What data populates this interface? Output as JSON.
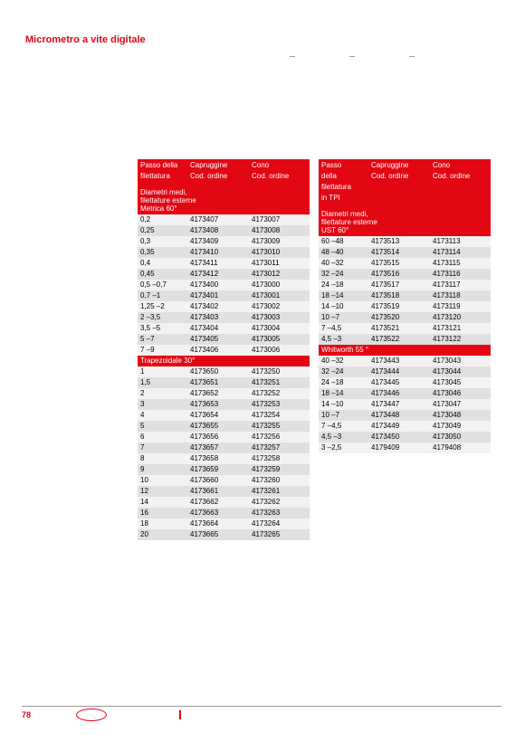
{
  "title": "Micrometro a vite digitale",
  "topLabels": [
    "—",
    "—",
    "—"
  ],
  "left": {
    "head": {
      "c1a": "Passo della",
      "c1b": "filettatura",
      "c2": "Capruggine",
      "c3": "Cono",
      "c2b": "Cod. ordine",
      "c3b": "Cod. ordine"
    },
    "section1": "Diametri medi,\nfilettature esterne\nMetrica 60°",
    "rows1": [
      [
        "0,2",
        "4173407",
        "4173007"
      ],
      [
        "0,25",
        "4173408",
        "4173008"
      ],
      [
        "0,3",
        "4173409",
        "4173009"
      ],
      [
        "0,35",
        "4173410",
        "4173010"
      ],
      [
        "0,4",
        "4173411",
        "4173011"
      ],
      [
        "0,45",
        "4173412",
        "4173012"
      ],
      [
        "0,5 –0,7",
        "4173400",
        "4173000"
      ],
      [
        "0,7 –1",
        "4173401",
        "4173001"
      ],
      [
        "1,25 –2",
        "4173402",
        "4173002"
      ],
      [
        "2 –3,5",
        "4173403",
        "4173003"
      ],
      [
        "3,5 –5",
        "4173404",
        "4173004"
      ],
      [
        "5 –7",
        "4173405",
        "4173005"
      ],
      [
        "7 –9",
        "4173406",
        "4173006"
      ]
    ],
    "section2": "Trapezoidale 30°",
    "rows2": [
      [
        "1",
        "4173650",
        "4173250"
      ],
      [
        "1,5",
        "4173651",
        "4173251"
      ],
      [
        "2",
        "4173652",
        "4173252"
      ],
      [
        "3",
        "4173653",
        "4173253"
      ],
      [
        "4",
        "4173654",
        "4173254"
      ],
      [
        "5",
        "4173655",
        "4173255"
      ],
      [
        "6",
        "4173656",
        "4173256"
      ],
      [
        "7",
        "4173657",
        "4173257"
      ],
      [
        "8",
        "4173658",
        "4173258"
      ],
      [
        "9",
        "4173659",
        "4173259"
      ],
      [
        "10",
        "4173660",
        "4173260"
      ],
      [
        "12",
        "4173661",
        "4173261"
      ],
      [
        "14",
        "4173662",
        "4173262"
      ],
      [
        "16",
        "4173663",
        "4173263"
      ],
      [
        "18",
        "4173664",
        "4173264"
      ],
      [
        "20",
        "4173665",
        "4173265"
      ]
    ]
  },
  "right": {
    "head": {
      "c1a": "Passo",
      "c1b": "della",
      "c1c": "filettatura",
      "c1d": "in TPI",
      "c2": "Capruggine",
      "c3": "Cono",
      "c2b": "Cod. ordine",
      "c3b": "Cod. ordine"
    },
    "section1": "Diametri medi,\nfilettature esterne\nUST 60°",
    "rows1": [
      [
        "60 –48",
        "4173513",
        "4173113"
      ],
      [
        "48 –40",
        "4173514",
        "4173114"
      ],
      [
        "40 –32",
        "4173515",
        "4173115"
      ],
      [
        "32 –24",
        "4173516",
        "4173116"
      ],
      [
        "24 –18",
        "4173517",
        "4173117"
      ],
      [
        "18 –14",
        "4173518",
        "4173118"
      ],
      [
        "14 –10",
        "4173519",
        "4173119"
      ],
      [
        "10 –7",
        "4173520",
        "4173120"
      ],
      [
        "7 –4,5",
        "4173521",
        "4173121"
      ],
      [
        "4,5 –3",
        "4173522",
        "4173122"
      ]
    ],
    "section2": "Whitworth 55 °",
    "rows2": [
      [
        "40 –32",
        "4173443",
        "4173043"
      ],
      [
        "32 –24",
        "4173444",
        "4173044"
      ],
      [
        "24 –18",
        "4173445",
        "4173045"
      ],
      [
        "18 –14",
        "4173446",
        "4173046"
      ],
      [
        "14 –10",
        "4173447",
        "4173047"
      ],
      [
        "10 –7",
        "4173448",
        "4173048"
      ],
      [
        "7 –4,5",
        "4173449",
        "4173049"
      ],
      [
        "4,5 –3",
        "4173450",
        "4173050"
      ],
      [
        "3 –2,5",
        "4179409",
        "4179408"
      ]
    ]
  },
  "pageNumber": "78"
}
